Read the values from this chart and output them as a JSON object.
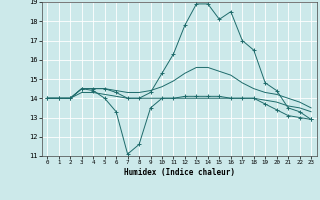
{
  "xlabel": "Humidex (Indice chaleur)",
  "xlim": [
    -0.5,
    23.5
  ],
  "ylim": [
    11,
    19
  ],
  "yticks": [
    11,
    12,
    13,
    14,
    15,
    16,
    17,
    18,
    19
  ],
  "xticks": [
    0,
    1,
    2,
    3,
    4,
    5,
    6,
    7,
    8,
    9,
    10,
    11,
    12,
    13,
    14,
    15,
    16,
    17,
    18,
    19,
    20,
    21,
    22,
    23
  ],
  "bg_color": "#cce9ea",
  "line_color": "#1e6b6b",
  "grid_color": "#ffffff",
  "lines": [
    {
      "x": [
        0,
        1,
        2,
        3,
        4,
        5,
        6,
        7,
        8,
        9,
        10,
        11,
        12,
        13,
        14,
        15,
        16,
        17,
        18,
        19,
        20,
        21,
        22,
        23
      ],
      "y": [
        14.0,
        14.0,
        14.0,
        14.5,
        14.4,
        14.0,
        13.3,
        11.1,
        11.6,
        13.5,
        14.0,
        14.0,
        14.1,
        14.1,
        14.1,
        14.1,
        14.0,
        14.0,
        14.0,
        13.7,
        13.4,
        13.1,
        13.0,
        12.9
      ],
      "marker": "+"
    },
    {
      "x": [
        0,
        1,
        2,
        3,
        4,
        5,
        6,
        7,
        8,
        9,
        10,
        11,
        12,
        13,
        14,
        15,
        16,
        17,
        18,
        19,
        20,
        21,
        22,
        23
      ],
      "y": [
        14.0,
        14.0,
        14.0,
        14.3,
        14.3,
        14.2,
        14.1,
        14.0,
        14.0,
        14.0,
        14.0,
        14.0,
        14.0,
        14.0,
        14.0,
        14.0,
        14.0,
        14.0,
        14.0,
        13.9,
        13.8,
        13.6,
        13.5,
        13.3
      ],
      "marker": null
    },
    {
      "x": [
        0,
        1,
        2,
        3,
        4,
        5,
        6,
        7,
        8,
        9,
        10,
        11,
        12,
        13,
        14,
        15,
        16,
        17,
        18,
        19,
        20,
        21,
        22,
        23
      ],
      "y": [
        14.0,
        14.0,
        14.0,
        14.5,
        14.5,
        14.5,
        14.3,
        14.0,
        14.0,
        14.3,
        15.3,
        16.3,
        17.8,
        18.9,
        18.9,
        18.1,
        18.5,
        17.0,
        16.5,
        14.8,
        14.4,
        13.5,
        13.3,
        12.9
      ],
      "marker": "+"
    },
    {
      "x": [
        0,
        1,
        2,
        3,
        4,
        5,
        6,
        7,
        8,
        9,
        10,
        11,
        12,
        13,
        14,
        15,
        16,
        17,
        18,
        19,
        20,
        21,
        22,
        23
      ],
      "y": [
        14.0,
        14.0,
        14.0,
        14.5,
        14.5,
        14.5,
        14.4,
        14.3,
        14.3,
        14.4,
        14.6,
        14.9,
        15.3,
        15.6,
        15.6,
        15.4,
        15.2,
        14.8,
        14.5,
        14.3,
        14.2,
        14.0,
        13.8,
        13.5
      ],
      "marker": null
    }
  ]
}
